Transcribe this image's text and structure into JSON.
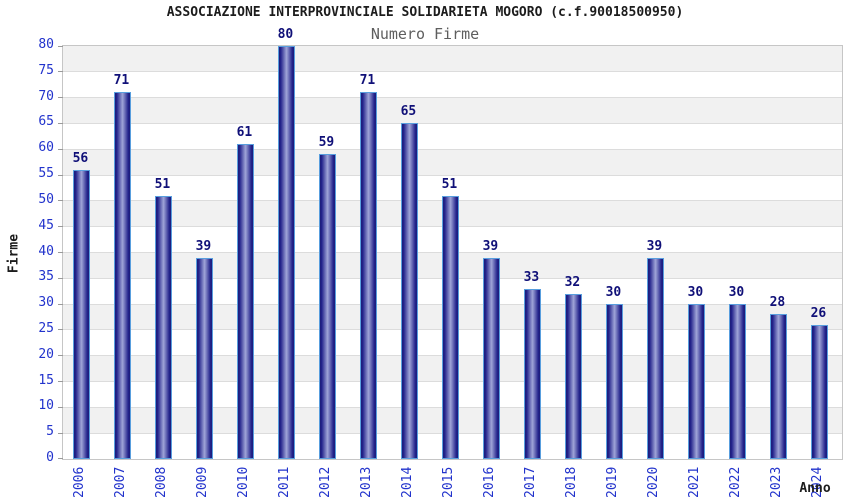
{
  "chart_data": {
    "type": "bar",
    "title": "ASSOCIAZIONE INTERPROVINCIALE SOLIDARIETA MOGORO (c.f.90018500950)",
    "subtitle": "Numero Firme",
    "xlabel": "Anno",
    "ylabel": "Firme",
    "categories": [
      "2006",
      "2007",
      "2008",
      "2009",
      "2010",
      "2011",
      "2012",
      "2013",
      "2014",
      "2015",
      "2016",
      "2017",
      "2018",
      "2019",
      "2020",
      "2021",
      "2022",
      "2023",
      "2024"
    ],
    "values": [
      56,
      71,
      51,
      39,
      61,
      80,
      59,
      71,
      65,
      51,
      39,
      33,
      32,
      30,
      39,
      30,
      30,
      28,
      26
    ],
    "ylim": [
      0,
      80
    ],
    "ytick_step": 5,
    "grid": true,
    "bands": "alternating gray/white every 5 units",
    "bar_value_labels": true,
    "legend_position": "none",
    "colors": {
      "axis_text": "#2233cc",
      "value_label": "#101078",
      "bar_dark": "#1b1b79",
      "bar_mid": "#a0a5d8",
      "bar_border": "#589ede",
      "band_gray": "#f1f1f1",
      "grid_line": "#dcdcdc",
      "plot_border": "#c6c6c6",
      "title_color": "#1c1c1c",
      "subtitle_color": "#5e5e5e",
      "page_bg": "#ffffff"
    }
  }
}
